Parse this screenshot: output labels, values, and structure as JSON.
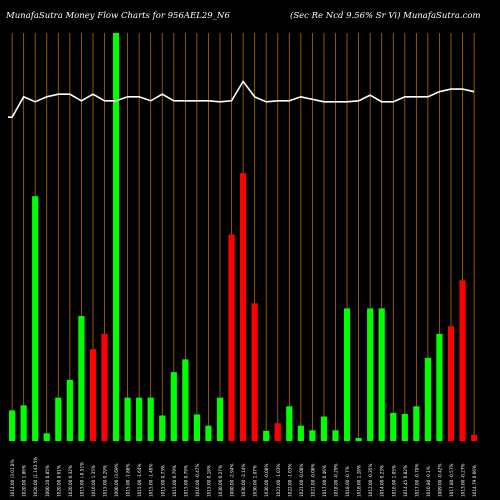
{
  "header": {
    "left_text": "MunafaSutra  Money Flow  Charts for 956AEL29_N6",
    "right_text": "(Sec Re    Ncd 9.56% Sr Vi) MunafaSutra.com"
  },
  "colors": {
    "background": "#000000",
    "up": "#00ff00",
    "down": "#ff0000",
    "grid": "#b8680e",
    "line": "#ffffff",
    "label": "#ffffff"
  },
  "chart_data": {
    "type": "bar",
    "title": "MunafaSutra  Money Flow  Charts for 956AEL29_N6",
    "subtitle": "(Sec Re    Ncd 9.56% Sr Vi) MunafaSutra.com",
    "categories": [
      "1014.00 (3.01.8%",
      "1020.00 1.86%",
      "1020.00 (1.143.5%",
      "1000.20 0.85%",
      "1020.00 0.61%",
      "1020.00 0.32%",
      "1015.00 (-0.51%",
      "1016.00 1.35%",
      "1015.00 0.29%",
      "1000.00 (3.69%",
      "1015.00 -1.88%",
      "1015.00 -1.64%",
      "1015.00 -1.49%",
      "1015.00 0.73%",
      "1015.00 0.79%",
      "1015.00 0.79%",
      "1016.00 -0.47%",
      "1015.00 0.18%",
      "1030.00 0.27%",
      "1000.00 -2.94%",
      "1030.00 -2.14%",
      "1030.00 1.07%",
      "1030.00 -0.08%",
      "1023.00 -1.03%",
      "1022.00 -1.03%",
      "1021.00 -0.08%",
      "1021.00 -0.08%",
      "1017.00 0.46%",
      "1018.00 -0.29%",
      "1018.00 -0.7%",
      "1018.00 1.28%",
      "1012.00 -0.35%",
      "1014.00 0.23%",
      "1016.00 1.05%",
      "1014.45 0.82%",
      "1017.00 -0.70%",
      "1010.80 -0.1%",
      "1009.00 -0.42%",
      "1017.80 -0.57%",
      "1013.00 -0.27%",
      "1014.79 0.66%"
    ],
    "values": [
      6,
      7,
      48,
      1.5,
      8.5,
      12,
      24.5,
      18,
      21,
      80,
      8.5,
      8.5,
      8.5,
      5,
      13.5,
      16,
      5.2,
      3,
      8.5,
      40.5,
      52.5,
      27,
      2,
      3.5,
      6.8,
      3,
      2.1,
      4.8,
      2.1,
      26,
      0.6,
      26,
      26,
      5.5,
      5.3,
      6.8,
      16.3,
      21,
      22.5,
      31.5,
      1.2
    ],
    "colors": [
      "up",
      "up",
      "up",
      "up",
      "up",
      "up",
      "up",
      "down",
      "down",
      "up",
      "up",
      "up",
      "up",
      "up",
      "up",
      "up",
      "up",
      "up",
      "up",
      "down",
      "down",
      "down",
      "up",
      "down",
      "up",
      "up",
      "up",
      "up",
      "up",
      "up",
      "up",
      "up",
      "up",
      "up",
      "up",
      "up",
      "up",
      "up",
      "down",
      "down",
      "down"
    ],
    "line_series": [
      63.5,
      67.5,
      66.5,
      67.5,
      68,
      68,
      66.7,
      68,
      66.7,
      66.7,
      67.5,
      67.5,
      66.7,
      68,
      66.7,
      66.7,
      66.7,
      66.7,
      66.5,
      66.7,
      70.5,
      67.5,
      66.5,
      66.7,
      66.7,
      67.5,
      67,
      66.5,
      66.5,
      66.5,
      66.7,
      67.8,
      66.5,
      66.5,
      67.5,
      67.5,
      67.5,
      68.5,
      69,
      69,
      68.5
    ],
    "ylim": [
      0,
      80
    ],
    "grid": true,
    "legend": "none"
  }
}
